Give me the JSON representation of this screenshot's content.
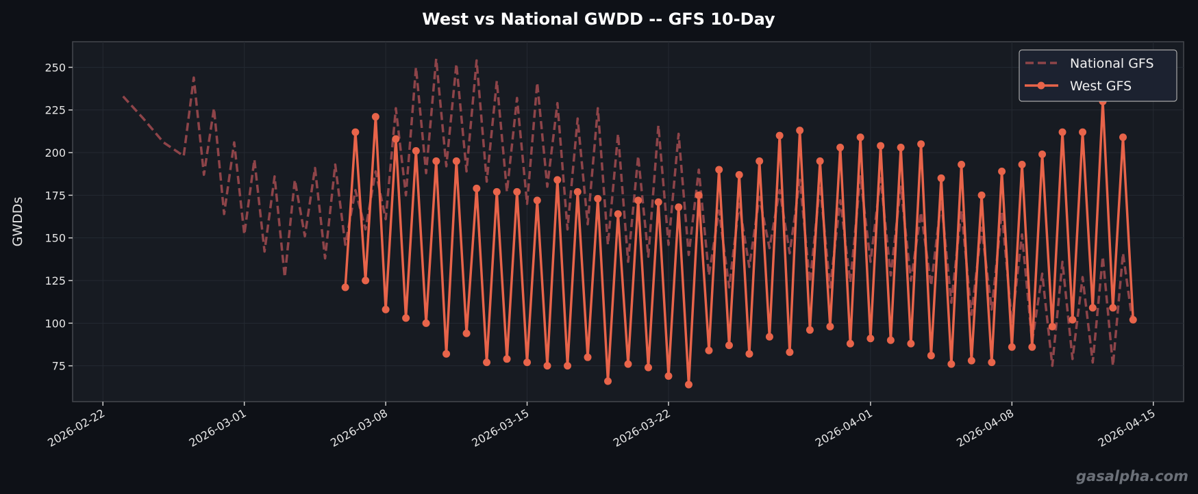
{
  "chart_data": {
    "type": "line",
    "title": "West vs National GWDD -- GFS 10-Day",
    "xlabel": "",
    "ylabel": "GWDDs",
    "xlim": [
      "2026-02-20 12:00",
      "2026-04-16 12:00"
    ],
    "ylim": [
      54,
      265
    ],
    "grid": true,
    "legend_position": "top-right",
    "x_ticks": [
      "2026-02-22",
      "2026-03-01",
      "2026-03-08",
      "2026-03-15",
      "2026-03-22",
      "2026-04-01",
      "2026-04-08",
      "2026-04-15"
    ],
    "y_ticks": [
      75,
      100,
      125,
      150,
      175,
      200,
      225,
      250
    ],
    "colors": {
      "background": "#0e1117",
      "plot_background": "#171b22",
      "grid": "#252a32",
      "national": "#8e4449",
      "west": "#e8644a"
    },
    "series": [
      {
        "name": "National GFS",
        "style": "dashed",
        "points": [
          [
            "2026-02-23 00:00",
            233
          ],
          [
            "2026-02-24 00:00",
            220
          ],
          [
            "2026-02-25 00:00",
            206
          ],
          [
            "2026-02-26 00:00",
            198
          ],
          [
            "2026-02-26 12:00",
            244
          ],
          [
            "2026-02-27 00:00",
            187
          ],
          [
            "2026-02-27 12:00",
            226
          ],
          [
            "2026-02-28 00:00",
            164
          ],
          [
            "2026-02-28 12:00",
            206
          ],
          [
            "2026-03-01 00:00",
            152
          ],
          [
            "2026-03-01 12:00",
            196
          ],
          [
            "2026-03-02 00:00",
            142
          ],
          [
            "2026-03-02 12:00",
            186
          ],
          [
            "2026-03-03 00:00",
            127
          ],
          [
            "2026-03-03 12:00",
            184
          ],
          [
            "2026-03-04 00:00",
            151
          ],
          [
            "2026-03-04 12:00",
            191
          ],
          [
            "2026-03-05 00:00",
            138
          ],
          [
            "2026-03-05 12:00",
            193
          ],
          [
            "2026-03-06 00:00",
            146
          ],
          [
            "2026-03-06 12:00",
            178
          ],
          [
            "2026-03-07 00:00",
            155
          ],
          [
            "2026-03-07 12:00",
            189
          ],
          [
            "2026-03-08 00:00",
            161
          ],
          [
            "2026-03-08 12:00",
            226
          ],
          [
            "2026-03-09 00:00",
            175
          ],
          [
            "2026-03-09 12:00",
            250
          ],
          [
            "2026-03-10 00:00",
            188
          ],
          [
            "2026-03-10 12:00",
            255
          ],
          [
            "2026-03-11 00:00",
            192
          ],
          [
            "2026-03-11 12:00",
            252
          ],
          [
            "2026-03-12 00:00",
            189
          ],
          [
            "2026-03-12 12:00",
            254
          ],
          [
            "2026-03-13 00:00",
            183
          ],
          [
            "2026-03-13 12:00",
            242
          ],
          [
            "2026-03-14 00:00",
            177
          ],
          [
            "2026-03-14 12:00",
            232
          ],
          [
            "2026-03-15 00:00",
            170
          ],
          [
            "2026-03-15 12:00",
            241
          ],
          [
            "2026-03-16 00:00",
            180
          ],
          [
            "2026-03-16 12:00",
            229
          ],
          [
            "2026-03-17 00:00",
            155
          ],
          [
            "2026-03-17 12:00",
            220
          ],
          [
            "2026-03-18 00:00",
            158
          ],
          [
            "2026-03-18 12:00",
            226
          ],
          [
            "2026-03-19 00:00",
            146
          ],
          [
            "2026-03-19 12:00",
            211
          ],
          [
            "2026-03-20 00:00",
            136
          ],
          [
            "2026-03-20 12:00",
            198
          ],
          [
            "2026-03-21 00:00",
            139
          ],
          [
            "2026-03-21 12:00",
            216
          ],
          [
            "2026-03-22 00:00",
            146
          ],
          [
            "2026-03-22 12:00",
            211
          ],
          [
            "2026-03-23 00:00",
            140
          ],
          [
            "2026-03-23 12:00",
            190
          ],
          [
            "2026-03-24 00:00",
            128
          ],
          [
            "2026-03-24 12:00",
            166
          ],
          [
            "2026-03-25 00:00",
            121
          ],
          [
            "2026-03-25 12:00",
            170
          ],
          [
            "2026-03-26 00:00",
            133
          ],
          [
            "2026-03-26 12:00",
            174
          ],
          [
            "2026-03-27 00:00",
            144
          ],
          [
            "2026-03-27 12:00",
            178
          ],
          [
            "2026-03-28 00:00",
            141
          ],
          [
            "2026-03-28 12:00",
            184
          ],
          [
            "2026-03-29 00:00",
            124
          ],
          [
            "2026-03-29 12:00",
            181
          ],
          [
            "2026-03-30 00:00",
            121
          ],
          [
            "2026-03-30 12:00",
            172
          ],
          [
            "2026-03-31 00:00",
            124
          ],
          [
            "2026-03-31 12:00",
            186
          ],
          [
            "2026-04-01 00:00",
            136
          ],
          [
            "2026-04-01 12:00",
            185
          ],
          [
            "2026-04-02 00:00",
            128
          ],
          [
            "2026-04-02 12:00",
            180
          ],
          [
            "2026-04-03 00:00",
            125
          ],
          [
            "2026-04-03 12:00",
            165
          ],
          [
            "2026-04-04 00:00",
            122
          ],
          [
            "2026-04-04 12:00",
            172
          ],
          [
            "2026-04-05 00:00",
            112
          ],
          [
            "2026-04-05 12:00",
            166
          ],
          [
            "2026-04-06 00:00",
            105
          ],
          [
            "2026-04-06 12:00",
            156
          ],
          [
            "2026-04-07 00:00",
            108
          ],
          [
            "2026-04-07 12:00",
            165
          ],
          [
            "2026-04-08 00:00",
            100
          ],
          [
            "2026-04-08 12:00",
            152
          ],
          [
            "2026-04-09 00:00",
            89
          ],
          [
            "2026-04-09 12:00",
            129
          ],
          [
            "2026-04-10 00:00",
            75
          ],
          [
            "2026-04-10 12:00",
            136
          ],
          [
            "2026-04-11 00:00",
            79
          ],
          [
            "2026-04-11 12:00",
            127
          ],
          [
            "2026-04-12 00:00",
            77
          ],
          [
            "2026-04-12 12:00",
            139
          ],
          [
            "2026-04-13 00:00",
            75
          ],
          [
            "2026-04-13 12:00",
            141
          ],
          [
            "2026-04-14 00:00",
            98
          ]
        ]
      },
      {
        "name": "West GFS",
        "style": "solid-markers",
        "points": [
          [
            "2026-03-06 00:00",
            121
          ],
          [
            "2026-03-06 12:00",
            212
          ],
          [
            "2026-03-07 00:00",
            125
          ],
          [
            "2026-03-07 12:00",
            221
          ],
          [
            "2026-03-08 00:00",
            108
          ],
          [
            "2026-03-08 12:00",
            208
          ],
          [
            "2026-03-09 00:00",
            103
          ],
          [
            "2026-03-09 12:00",
            201
          ],
          [
            "2026-03-10 00:00",
            100
          ],
          [
            "2026-03-10 12:00",
            195
          ],
          [
            "2026-03-11 00:00",
            82
          ],
          [
            "2026-03-11 12:00",
            195
          ],
          [
            "2026-03-12 00:00",
            94
          ],
          [
            "2026-03-12 12:00",
            179
          ],
          [
            "2026-03-13 00:00",
            77
          ],
          [
            "2026-03-13 12:00",
            177
          ],
          [
            "2026-03-14 00:00",
            79
          ],
          [
            "2026-03-14 12:00",
            177
          ],
          [
            "2026-03-15 00:00",
            77
          ],
          [
            "2026-03-15 12:00",
            172
          ],
          [
            "2026-03-16 00:00",
            75
          ],
          [
            "2026-03-16 12:00",
            184
          ],
          [
            "2026-03-17 00:00",
            75
          ],
          [
            "2026-03-17 12:00",
            177
          ],
          [
            "2026-03-18 00:00",
            80
          ],
          [
            "2026-03-18 12:00",
            173
          ],
          [
            "2026-03-19 00:00",
            66
          ],
          [
            "2026-03-19 12:00",
            164
          ],
          [
            "2026-03-20 00:00",
            76
          ],
          [
            "2026-03-20 12:00",
            172
          ],
          [
            "2026-03-21 00:00",
            74
          ],
          [
            "2026-03-21 12:00",
            171
          ],
          [
            "2026-03-22 00:00",
            69
          ],
          [
            "2026-03-22 12:00",
            168
          ],
          [
            "2026-03-23 00:00",
            64
          ],
          [
            "2026-03-23 12:00",
            175
          ],
          [
            "2026-03-24 00:00",
            84
          ],
          [
            "2026-03-24 12:00",
            190
          ],
          [
            "2026-03-25 00:00",
            87
          ],
          [
            "2026-03-25 12:00",
            187
          ],
          [
            "2026-03-26 00:00",
            82
          ],
          [
            "2026-03-26 12:00",
            195
          ],
          [
            "2026-03-27 00:00",
            92
          ],
          [
            "2026-03-27 12:00",
            210
          ],
          [
            "2026-03-28 00:00",
            83
          ],
          [
            "2026-03-28 12:00",
            213
          ],
          [
            "2026-03-29 00:00",
            96
          ],
          [
            "2026-03-29 12:00",
            195
          ],
          [
            "2026-03-30 00:00",
            98
          ],
          [
            "2026-03-30 12:00",
            203
          ],
          [
            "2026-03-31 00:00",
            88
          ],
          [
            "2026-03-31 12:00",
            209
          ],
          [
            "2026-04-01 00:00",
            91
          ],
          [
            "2026-04-01 12:00",
            204
          ],
          [
            "2026-04-02 00:00",
            90
          ],
          [
            "2026-04-02 12:00",
            203
          ],
          [
            "2026-04-03 00:00",
            88
          ],
          [
            "2026-04-03 12:00",
            205
          ],
          [
            "2026-04-04 00:00",
            81
          ],
          [
            "2026-04-04 12:00",
            185
          ],
          [
            "2026-04-05 00:00",
            76
          ],
          [
            "2026-04-05 12:00",
            193
          ],
          [
            "2026-04-06 00:00",
            78
          ],
          [
            "2026-04-06 12:00",
            175
          ],
          [
            "2026-04-07 00:00",
            77
          ],
          [
            "2026-04-07 12:00",
            189
          ],
          [
            "2026-04-08 00:00",
            86
          ],
          [
            "2026-04-08 12:00",
            193
          ],
          [
            "2026-04-09 00:00",
            86
          ],
          [
            "2026-04-09 12:00",
            199
          ],
          [
            "2026-04-10 00:00",
            98
          ],
          [
            "2026-04-10 12:00",
            212
          ],
          [
            "2026-04-11 00:00",
            102
          ],
          [
            "2026-04-11 12:00",
            212
          ],
          [
            "2026-04-12 00:00",
            109
          ],
          [
            "2026-04-12 12:00",
            230
          ],
          [
            "2026-04-13 00:00",
            109
          ],
          [
            "2026-04-13 12:00",
            209
          ],
          [
            "2026-04-14 00:00",
            102
          ]
        ]
      }
    ]
  },
  "watermark": "gasalpha.com"
}
